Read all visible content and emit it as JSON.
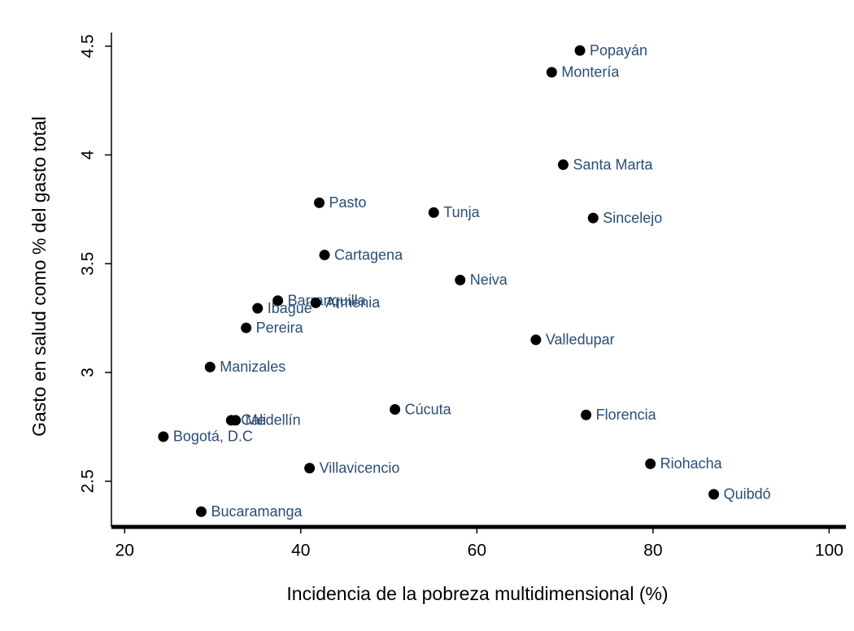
{
  "chart_data": {
    "type": "scatter",
    "x_label": "Incidencia de la pobreza multidimensional (%)",
    "y_label": "Gasto en salud como % del gasto total",
    "labels": [
      "Popayán",
      "Montería",
      "Santa Marta",
      "Sincelejo",
      "Pasto",
      "Tunja",
      "Cartagena",
      "Neiva",
      "Barranquilla",
      "Armenia",
      "Ibagué",
      "Pereira",
      "Valledupar",
      "Manizales",
      "Cúcuta",
      "Florencia",
      "Medellín",
      "Cali",
      "Bogotá, D.C",
      "Villavicencio",
      "Riohacha",
      "Quibdó",
      "Bucaramanga"
    ],
    "x": [
      71.7,
      68.5,
      69.8,
      73.2,
      42.1,
      55.1,
      42.7,
      58.1,
      37.4,
      41.7,
      35.1,
      33.8,
      66.7,
      29.7,
      50.7,
      72.4,
      32.6,
      32.1,
      24.4,
      41.0,
      79.7,
      86.9,
      28.7
    ],
    "y": [
      4.48,
      4.38,
      3.955,
      3.71,
      3.78,
      3.735,
      3.54,
      3.425,
      3.33,
      3.32,
      3.295,
      3.205,
      3.15,
      3.025,
      2.83,
      2.805,
      2.78,
      2.78,
      2.705,
      2.56,
      2.58,
      2.44,
      2.36
    ],
    "color": "#000000",
    "label_color": "#2a4d74",
    "xlim": [
      18.5,
      101.9
    ],
    "ylim": [
      2.29,
      4.6
    ],
    "xticks": [
      20,
      40,
      60,
      80,
      100
    ],
    "yticks": [
      2.5,
      3,
      3.5,
      4,
      4.5
    ]
  }
}
